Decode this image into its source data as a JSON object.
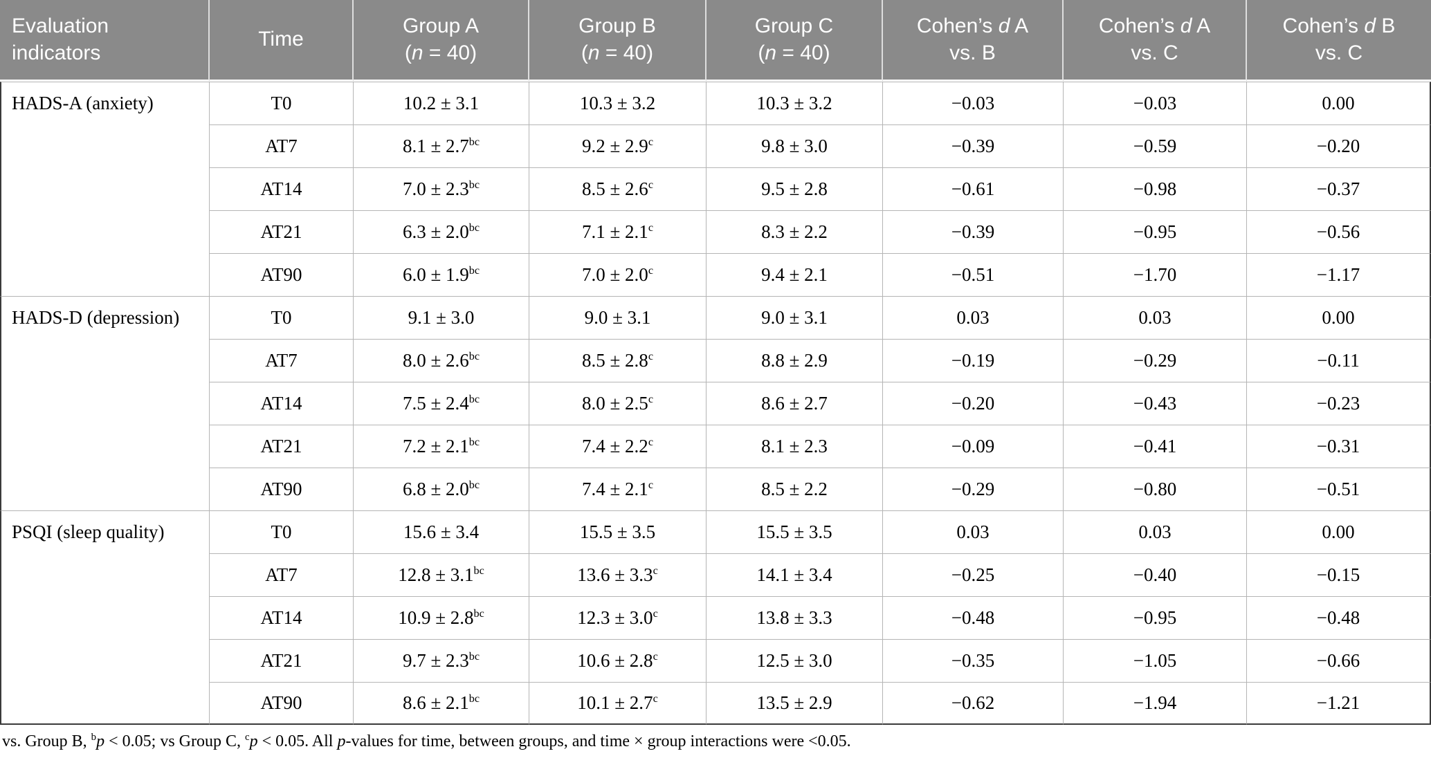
{
  "table": {
    "header": {
      "evaluation": "Evaluation indicators",
      "time": "Time",
      "groups": [
        {
          "line1": "Group A",
          "l2a": "(",
          "l2b": "n",
          "l2c": " = 40)"
        },
        {
          "line1": "Group B",
          "l2a": "(",
          "l2b": "n",
          "l2c": " = 40)"
        },
        {
          "line1": "Group C",
          "l2a": "(",
          "l2b": "n",
          "l2c": " = 40)"
        }
      ],
      "cohens": [
        {
          "l1a": "Cohen’s ",
          "l1b": "d",
          "l1c": " A",
          "line2": "vs. B"
        },
        {
          "l1a": "Cohen’s ",
          "l1b": "d",
          "l1c": " A",
          "line2": "vs. C"
        },
        {
          "l1a": "Cohen’s ",
          "l1b": "d",
          "l1c": " B",
          "line2": "vs. C"
        }
      ]
    },
    "sections": [
      {
        "indicator": "HADS-A (anxiety)",
        "rows": [
          {
            "time": "T0",
            "a": "10.2 ± 3.1",
            "a_sup": "",
            "b": "10.3 ± 3.2",
            "b_sup": "",
            "c": "10.3 ± 3.2",
            "d_ab": "−0.03",
            "d_ac": "−0.03",
            "d_bc": "0.00"
          },
          {
            "time": "AT7",
            "a": "8.1 ± 2.7",
            "a_sup": "bc",
            "b": "9.2 ± 2.9",
            "b_sup": "c",
            "c": "9.8 ± 3.0",
            "d_ab": "−0.39",
            "d_ac": "−0.59",
            "d_bc": "−0.20"
          },
          {
            "time": "AT14",
            "a": "7.0 ± 2.3",
            "a_sup": "bc",
            "b": "8.5 ± 2.6",
            "b_sup": "c",
            "c": "9.5 ± 2.8",
            "d_ab": "−0.61",
            "d_ac": "−0.98",
            "d_bc": "−0.37"
          },
          {
            "time": "AT21",
            "a": "6.3 ± 2.0",
            "a_sup": "bc",
            "b": "7.1 ± 2.1",
            "b_sup": "c",
            "c": "8.3 ± 2.2",
            "d_ab": "−0.39",
            "d_ac": "−0.95",
            "d_bc": "−0.56"
          },
          {
            "time": "AT90",
            "a": "6.0 ± 1.9",
            "a_sup": "bc",
            "b": "7.0 ± 2.0",
            "b_sup": "c",
            "c": "9.4 ± 2.1",
            "d_ab": "−0.51",
            "d_ac": "−1.70",
            "d_bc": "−1.17"
          }
        ]
      },
      {
        "indicator": "HADS-D (depression)",
        "rows": [
          {
            "time": "T0",
            "a": "9.1 ± 3.0",
            "a_sup": "",
            "b": "9.0 ± 3.1",
            "b_sup": "",
            "c": "9.0 ± 3.1",
            "d_ab": "0.03",
            "d_ac": "0.03",
            "d_bc": "0.00"
          },
          {
            "time": "AT7",
            "a": "8.0 ± 2.6",
            "a_sup": "bc",
            "b": "8.5 ± 2.8",
            "b_sup": "c",
            "c": "8.8 ± 2.9",
            "d_ab": "−0.19",
            "d_ac": "−0.29",
            "d_bc": "−0.11"
          },
          {
            "time": "AT14",
            "a": "7.5 ± 2.4",
            "a_sup": "bc",
            "b": "8.0 ± 2.5",
            "b_sup": "c",
            "c": "8.6 ± 2.7",
            "d_ab": "−0.20",
            "d_ac": "−0.43",
            "d_bc": "−0.23"
          },
          {
            "time": "AT21",
            "a": "7.2 ± 2.1",
            "a_sup": "bc",
            "b": "7.4 ± 2.2",
            "b_sup": "c",
            "c": "8.1 ± 2.3",
            "d_ab": "−0.09",
            "d_ac": "−0.41",
            "d_bc": "−0.31"
          },
          {
            "time": "AT90",
            "a": "6.8 ± 2.0",
            "a_sup": "bc",
            "b": "7.4 ± 2.1",
            "b_sup": "c",
            "c": "8.5 ± 2.2",
            "d_ab": "−0.29",
            "d_ac": "−0.80",
            "d_bc": "−0.51"
          }
        ]
      },
      {
        "indicator": "PSQI (sleep quality)",
        "rows": [
          {
            "time": "T0",
            "a": "15.6 ± 3.4",
            "a_sup": "",
            "b": "15.5 ± 3.5",
            "b_sup": "",
            "c": "15.5 ± 3.5",
            "d_ab": "0.03",
            "d_ac": "0.03",
            "d_bc": "0.00"
          },
          {
            "time": "AT7",
            "a": "12.8 ± 3.1",
            "a_sup": "bc",
            "b": "13.6 ± 3.3",
            "b_sup": "c",
            "c": "14.1 ± 3.4",
            "d_ab": "−0.25",
            "d_ac": "−0.40",
            "d_bc": "−0.15"
          },
          {
            "time": "AT14",
            "a": "10.9 ± 2.8",
            "a_sup": "bc",
            "b": "12.3 ± 3.0",
            "b_sup": "c",
            "c": "13.8 ± 3.3",
            "d_ab": "−0.48",
            "d_ac": "−0.95",
            "d_bc": "−0.48"
          },
          {
            "time": "AT21",
            "a": "9.7 ± 2.3",
            "a_sup": "bc",
            "b": "10.6 ± 2.8",
            "b_sup": "c",
            "c": "12.5 ± 3.0",
            "d_ab": "−0.35",
            "d_ac": "−1.05",
            "d_bc": "−0.66"
          },
          {
            "time": "AT90",
            "a": "8.6 ± 2.1",
            "a_sup": "bc",
            "b": "10.1 ± 2.7",
            "b_sup": "c",
            "c": "13.5 ± 2.9",
            "d_ab": "−0.62",
            "d_ac": "−1.94",
            "d_bc": "−1.21"
          }
        ]
      }
    ]
  },
  "footnote": {
    "t1": "vs. Group B, ",
    "s1": "b",
    "p": "p",
    "t2": " < 0.05; vs Group C, ",
    "s2": "c",
    "t3": " < 0.05. All ",
    "t4": "-values for time, between groups, and time × group interactions were <0.05."
  },
  "colors": {
    "header_bg": "#8a8a8a",
    "header_text": "#ffffff",
    "grid_line": "#b5b5b5",
    "outer_border": "#3a3a3a",
    "body_text": "#000000"
  }
}
